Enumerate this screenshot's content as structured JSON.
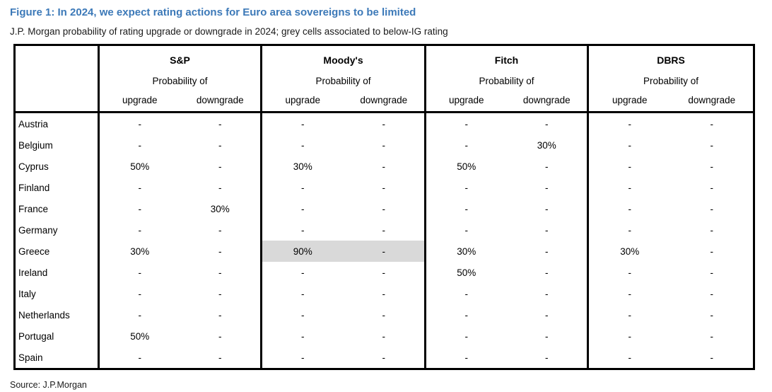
{
  "page": {
    "title": "Figure 1: In 2024, we expect rating actions for Euro area sovereigns to be limited",
    "subtitle": "J.P. Morgan probability of rating upgrade or downgrade in 2024; grey cells associated to below-IG rating",
    "source": "Source: J.P.Morgan"
  },
  "colors": {
    "title_blue": "#3c79b8",
    "below_ig_grey": "#d9d9d9",
    "border_black": "#000000"
  },
  "table": {
    "corner_label": "",
    "probability_label": "Probability of",
    "upgrade_label": "upgrade",
    "downgrade_label": "downgrade",
    "agencies": [
      "S&P",
      "Moody's",
      "Fitch",
      "DBRS"
    ],
    "rows": [
      {
        "country": "Austria",
        "values": [
          "-",
          "-",
          "-",
          "-",
          "-",
          "-",
          "-",
          "-"
        ]
      },
      {
        "country": "Belgium",
        "values": [
          "-",
          "-",
          "-",
          "-",
          "-",
          "30%",
          "-",
          "-"
        ]
      },
      {
        "country": "Cyprus",
        "values": [
          "50%",
          "-",
          "30%",
          "-",
          "50%",
          "-",
          "-",
          "-"
        ]
      },
      {
        "country": "Finland",
        "values": [
          "-",
          "-",
          "-",
          "-",
          "-",
          "-",
          "-",
          "-"
        ]
      },
      {
        "country": "France",
        "values": [
          "-",
          "30%",
          "-",
          "-",
          "-",
          "-",
          "-",
          "-"
        ]
      },
      {
        "country": "Germany",
        "values": [
          "-",
          "-",
          "-",
          "-",
          "-",
          "-",
          "-",
          "-"
        ]
      },
      {
        "country": "Greece",
        "values": [
          "30%",
          "-",
          "90%",
          "-",
          "30%",
          "-",
          "30%",
          "-"
        ],
        "grey_cells": [
          2,
          3
        ]
      },
      {
        "country": "Ireland",
        "values": [
          "-",
          "-",
          "-",
          "-",
          "50%",
          "-",
          "-",
          "-"
        ]
      },
      {
        "country": "Italy",
        "values": [
          "-",
          "-",
          "-",
          "-",
          "-",
          "-",
          "-",
          "-"
        ]
      },
      {
        "country": "Netherlands",
        "values": [
          "-",
          "-",
          "-",
          "-",
          "-",
          "-",
          "-",
          "-"
        ]
      },
      {
        "country": "Portugal",
        "values": [
          "50%",
          "-",
          "-",
          "-",
          "-",
          "-",
          "-",
          "-"
        ],
        "bold_cells": [
          1,
          2,
          3,
          4,
          5,
          6,
          7
        ]
      },
      {
        "country": "Spain",
        "values": [
          "-",
          "-",
          "-",
          "-",
          "-",
          "-",
          "-",
          "-"
        ]
      }
    ]
  }
}
